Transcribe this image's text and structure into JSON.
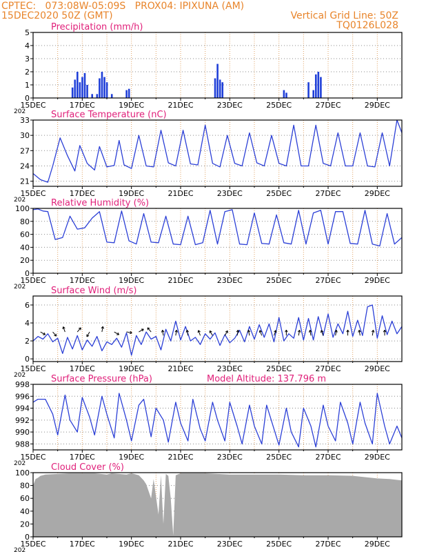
{
  "header": {
    "line1_left": "CPTEC:   073:08W-05:09S   PROX04: IPIXUNA (AM)",
    "line2_left": "15DEC2020 50Z (GMT)",
    "line2_right": "Vertical Grid Line: 50Z",
    "line3_right": "TQ0126L028"
  },
  "colors": {
    "header": "#e8842a",
    "title": "#e0207a",
    "line": "#2b3fd6",
    "bar": "#1f3fd8",
    "cloud": "#a9a9a9",
    "grid_v": "#e0a060",
    "grid_h": "#888888"
  },
  "x_axis": {
    "day_labels": [
      "15DEC",
      "17DEC",
      "19DEC",
      "21DEC",
      "23DEC",
      "25DEC",
      "27DEC",
      "29DEC"
    ],
    "year_fragment": "202"
  },
  "chart_data": [
    {
      "type": "bar",
      "title": "Precipitation (mm/h)",
      "ylim": [
        0,
        5
      ],
      "yticks": [
        "0",
        "1",
        "2",
        "3",
        "4",
        "5"
      ],
      "bars": [
        [
          16.6,
          0.8
        ],
        [
          16.7,
          1.4
        ],
        [
          16.8,
          2.0
        ],
        [
          16.9,
          1.2
        ],
        [
          17.0,
          1.6
        ],
        [
          17.1,
          1.9
        ],
        [
          17.2,
          1.0
        ],
        [
          17.4,
          0.3
        ],
        [
          17.6,
          0.3
        ],
        [
          17.7,
          1.5
        ],
        [
          17.8,
          2.0
        ],
        [
          17.9,
          1.6
        ],
        [
          18.0,
          1.2
        ],
        [
          18.2,
          0.3
        ],
        [
          18.8,
          0.6
        ],
        [
          18.9,
          0.7
        ],
        [
          22.4,
          1.5
        ],
        [
          22.5,
          2.6
        ],
        [
          22.6,
          1.4
        ],
        [
          22.7,
          1.2
        ],
        [
          25.2,
          0.6
        ],
        [
          25.3,
          0.4
        ],
        [
          26.2,
          1.2
        ],
        [
          26.4,
          0.6
        ],
        [
          26.5,
          1.8
        ],
        [
          26.6,
          2.0
        ],
        [
          26.7,
          1.6
        ]
      ]
    },
    {
      "type": "line",
      "title": "Surface Temperature (nC)",
      "ylim": [
        20,
        33
      ],
      "yticks": [
        "21",
        "24",
        "27",
        "30",
        "33"
      ],
      "x": [
        15.0,
        15.3,
        15.6,
        15.8,
        16.1,
        16.4,
        16.7,
        16.9,
        17.2,
        17.5,
        17.7,
        18.0,
        18.3,
        18.5,
        18.7,
        19.0,
        19.3,
        19.6,
        19.9,
        20.2,
        20.5,
        20.8,
        21.1,
        21.4,
        21.7,
        22.0,
        22.3,
        22.6,
        22.9,
        23.2,
        23.5,
        23.8,
        24.1,
        24.4,
        24.7,
        25.0,
        25.3,
        25.6,
        25.9,
        26.2,
        26.5,
        26.8,
        27.1,
        27.4,
        27.7,
        28.0,
        28.3,
        28.6,
        28.9,
        29.2,
        29.5,
        29.8,
        30.0
      ],
      "values": [
        22.5,
        21.3,
        20.8,
        24.0,
        29.5,
        26.0,
        23.0,
        28.0,
        24.5,
        23.2,
        27.8,
        23.8,
        24.1,
        29.0,
        24.2,
        23.5,
        30.0,
        24.0,
        23.8,
        31.0,
        24.6,
        24.0,
        31.0,
        24.4,
        24.2,
        32.0,
        24.5,
        23.8,
        30.0,
        24.5,
        24.0,
        30.5,
        24.6,
        24.0,
        30.0,
        24.5,
        24.0,
        32.0,
        24.0,
        24.0,
        32.0,
        24.5,
        24.0,
        30.5,
        24.0,
        24.0,
        30.5,
        24.0,
        23.8,
        30.5,
        24.0,
        33.0,
        30.5
      ]
    },
    {
      "type": "line",
      "title": "Relative Humidity (%)",
      "ylim": [
        0,
        100
      ],
      "yticks": [
        "0",
        "20",
        "40",
        "60",
        "80",
        "100"
      ],
      "x": [
        15.0,
        15.2,
        15.4,
        15.6,
        15.9,
        16.2,
        16.5,
        16.8,
        17.1,
        17.4,
        17.7,
        18.0,
        18.3,
        18.6,
        18.9,
        19.2,
        19.5,
        19.8,
        20.1,
        20.4,
        20.7,
        21.0,
        21.3,
        21.6,
        21.9,
        22.2,
        22.5,
        22.8,
        23.1,
        23.4,
        23.7,
        24.0,
        24.3,
        24.6,
        24.9,
        25.2,
        25.5,
        25.8,
        26.1,
        26.4,
        26.7,
        27.0,
        27.3,
        27.6,
        27.9,
        28.2,
        28.5,
        28.8,
        29.1,
        29.4,
        29.7,
        30.0
      ],
      "values": [
        98,
        99,
        96,
        95,
        52,
        55,
        88,
        68,
        70,
        85,
        95,
        48,
        47,
        96,
        50,
        45,
        92,
        48,
        47,
        88,
        45,
        44,
        88,
        44,
        47,
        97,
        45,
        95,
        98,
        45,
        44,
        93,
        46,
        45,
        90,
        47,
        45,
        97,
        45,
        93,
        97,
        45,
        95,
        95,
        46,
        45,
        97,
        45,
        42,
        92,
        45,
        55
      ]
    },
    {
      "type": "line",
      "title": "Surface Wind (m/s)",
      "ylim": [
        -0.3,
        7
      ],
      "yticks": [
        "0",
        "2",
        "4",
        "6"
      ],
      "x": [
        15.0,
        15.2,
        15.4,
        15.6,
        15.8,
        16.0,
        16.2,
        16.4,
        16.6,
        16.8,
        17.0,
        17.2,
        17.4,
        17.6,
        17.8,
        18.0,
        18.2,
        18.4,
        18.6,
        18.8,
        19.0,
        19.2,
        19.4,
        19.6,
        19.8,
        20.0,
        20.2,
        20.4,
        20.6,
        20.8,
        21.0,
        21.2,
        21.4,
        21.6,
        21.8,
        22.0,
        22.2,
        22.4,
        22.6,
        22.8,
        23.0,
        23.2,
        23.4,
        23.6,
        23.8,
        24.0,
        24.2,
        24.4,
        24.6,
        24.8,
        25.0,
        25.2,
        25.4,
        25.6,
        25.8,
        26.0,
        26.2,
        26.4,
        26.6,
        26.8,
        27.0,
        27.2,
        27.4,
        27.6,
        27.8,
        28.0,
        28.2,
        28.4,
        28.6,
        28.8,
        29.0,
        29.2,
        29.4,
        29.6,
        29.8,
        30.0
      ],
      "values": [
        2.0,
        2.5,
        2.2,
        2.8,
        1.9,
        2.3,
        0.6,
        2.4,
        1.1,
        2.6,
        1.0,
        2.1,
        1.4,
        2.5,
        0.9,
        1.9,
        1.6,
        2.3,
        1.3,
        2.9,
        0.4,
        2.6,
        1.6,
        3.0,
        2.2,
        2.5,
        1.0,
        3.3,
        2.0,
        4.2,
        2.1,
        3.6,
        2.0,
        2.4,
        1.6,
        2.8,
        2.2,
        2.9,
        1.5,
        2.7,
        1.8,
        2.3,
        3.2,
        1.9,
        3.6,
        2.2,
        3.8,
        2.4,
        3.9,
        1.9,
        4.6,
        2.0,
        2.8,
        2.3,
        4.6,
        2.1,
        4.5,
        2.1,
        4.7,
        2.6,
        5.0,
        2.4,
        3.9,
        2.8,
        5.3,
        2.5,
        4.3,
        2.6,
        5.8,
        6.0,
        2.3,
        4.8,
        2.7,
        4.2,
        2.8,
        3.6
      ]
    },
    {
      "type": "line",
      "title": "Surface Pressure (hPa)",
      "annotation": "Model Altitude: 137.796  m",
      "ylim": [
        987,
        998
      ],
      "yticks": [
        "988",
        "990",
        "992",
        "994",
        "996",
        "998"
      ],
      "x": [
        15.0,
        15.2,
        15.5,
        15.8,
        16.0,
        16.3,
        16.5,
        16.8,
        17.0,
        17.3,
        17.5,
        17.8,
        18.0,
        18.3,
        18.5,
        18.8,
        19.0,
        19.3,
        19.5,
        19.8,
        20.0,
        20.3,
        20.5,
        20.8,
        21.0,
        21.3,
        21.5,
        21.8,
        22.0,
        22.3,
        22.5,
        22.8,
        23.0,
        23.3,
        23.5,
        23.8,
        24.0,
        24.3,
        24.5,
        24.8,
        25.0,
        25.3,
        25.5,
        25.8,
        26.0,
        26.3,
        26.5,
        26.8,
        27.0,
        27.3,
        27.5,
        27.8,
        28.0,
        28.3,
        28.5,
        28.8,
        29.0,
        29.3,
        29.5,
        29.8,
        30.0
      ],
      "values": [
        995.0,
        995.5,
        995.5,
        993.0,
        989.5,
        996.2,
        992.0,
        990.0,
        995.8,
        992.5,
        989.5,
        996.0,
        993.0,
        989.0,
        996.5,
        992.0,
        988.5,
        994.5,
        995.5,
        989.2,
        994.0,
        992.0,
        988.3,
        995.0,
        991.5,
        988.5,
        995.5,
        990.5,
        988.5,
        995.0,
        992.0,
        988.5,
        995.0,
        991.0,
        988.0,
        994.5,
        991.0,
        988.0,
        994.5,
        990.5,
        987.8,
        994.0,
        990.0,
        987.5,
        994.0,
        991.0,
        987.5,
        994.5,
        991.0,
        988.5,
        995.0,
        991.5,
        988.0,
        995.0,
        991.5,
        988.0,
        996.5,
        991.0,
        988.0,
        991.0,
        989.0
      ]
    },
    {
      "type": "area",
      "title": "Cloud Cover (%)",
      "ylim": [
        0,
        100
      ],
      "yticks": [
        "0",
        "20",
        "40",
        "60",
        "80",
        "100"
      ],
      "x": [
        15.0,
        15.1,
        15.2,
        15.3,
        15.5,
        16.0,
        16.5,
        17.0,
        17.5,
        18.0,
        18.2,
        18.5,
        18.8,
        19.0,
        19.3,
        19.5,
        19.6,
        19.8,
        19.9,
        20.1,
        20.2,
        20.3,
        20.4,
        20.5,
        20.6,
        20.7,
        20.8,
        21.0,
        21.5,
        22.0,
        22.5,
        23.0,
        24.0,
        25.0,
        26.0,
        27.0,
        28.0,
        28.5,
        29.0,
        29.5,
        30.0
      ],
      "values": [
        80,
        90,
        92,
        95,
        97,
        98,
        99,
        99,
        99,
        97,
        99,
        98,
        97,
        99,
        96,
        88,
        82,
        60,
        90,
        35,
        96,
        20,
        98,
        95,
        60,
        2,
        96,
        99,
        99,
        99,
        98,
        97,
        97,
        97,
        96,
        96,
        95,
        93,
        91,
        90,
        88
      ]
    }
  ]
}
